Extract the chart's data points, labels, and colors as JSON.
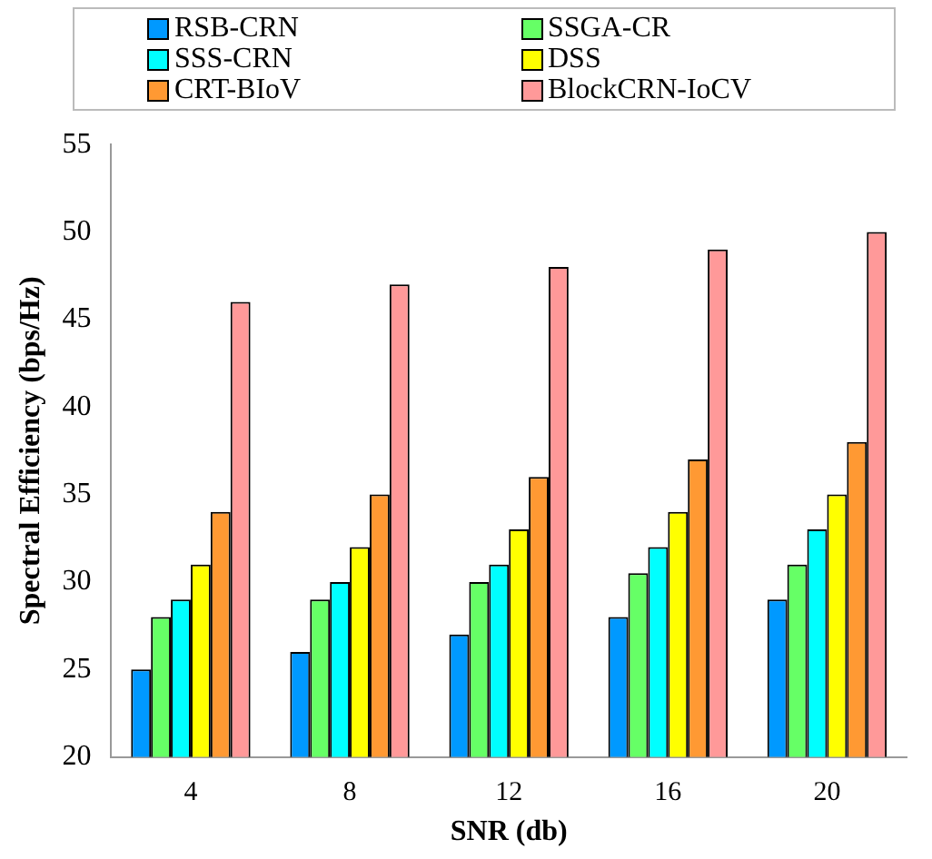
{
  "chart_data": {
    "type": "bar",
    "xlabel": "SNR (db)",
    "ylabel": "Spectral Efficiency (bps/Hz)",
    "categories": [
      "4",
      "8",
      "12",
      "16",
      "20"
    ],
    "series": [
      {
        "name": "RSB-CRN",
        "color": "#0099ff",
        "values": [
          25,
          26,
          27,
          28,
          29
        ]
      },
      {
        "name": "SSGA-CR",
        "color": "#66ff66",
        "values": [
          28,
          29,
          30,
          30.5,
          31
        ]
      },
      {
        "name": "SSS-CRN",
        "color": "#00ffff",
        "values": [
          29,
          30,
          31,
          32,
          33
        ]
      },
      {
        "name": "DSS",
        "color": "#ffff00",
        "values": [
          31,
          32,
          33,
          34,
          35
        ]
      },
      {
        "name": "CRT-BIoV",
        "color": "#ff9933",
        "values": [
          34,
          35,
          36,
          37,
          38
        ]
      },
      {
        "name": "BlockCRN-IoCV",
        "color": "#ff9999",
        "values": [
          46,
          47,
          48,
          49,
          50
        ]
      }
    ],
    "ylim": [
      20,
      55
    ],
    "yticks": [
      20,
      25,
      30,
      35,
      40,
      45,
      50,
      55
    ],
    "grid": false,
    "legend": "top"
  }
}
